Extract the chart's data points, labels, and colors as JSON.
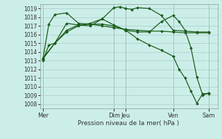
{
  "xlabel": "Pression niveau de la mer( hPa )",
  "bg_color": "#cceee8",
  "grid_color": "#aacccc",
  "line_color": "#1a5c1a",
  "ylim": [
    1007.5,
    1019.5
  ],
  "yticks": [
    1008,
    1009,
    1010,
    1011,
    1012,
    1013,
    1014,
    1015,
    1016,
    1017,
    1018,
    1019
  ],
  "xtick_labels": [
    "Mer",
    "Dim",
    "Jeu",
    "Ven",
    "Sam"
  ],
  "xtick_pos": [
    0,
    12,
    14,
    22,
    28
  ],
  "xlim": [
    -0.5,
    29.5
  ],
  "vline_color": "#889999",
  "series": [
    {
      "x": [
        0,
        1,
        2,
        4,
        6,
        8,
        10,
        12,
        13,
        14,
        15,
        16,
        18,
        20,
        22,
        24,
        26,
        28
      ],
      "y": [
        1013.0,
        1014.8,
        1015.0,
        1017.3,
        1017.1,
        1017.0,
        1017.8,
        1019.1,
        1019.2,
        1019.0,
        1018.9,
        1019.1,
        1019.0,
        1018.2,
        1016.5,
        1016.4,
        1016.3,
        1016.3
      ]
    },
    {
      "x": [
        0,
        1,
        2,
        4,
        6,
        8,
        10,
        12,
        14,
        16,
        18,
        20,
        22,
        24,
        26,
        28
      ],
      "y": [
        1013.2,
        1017.2,
        1018.3,
        1018.5,
        1017.3,
        1017.2,
        1017.0,
        1016.8,
        1016.6,
        1016.5,
        1016.4,
        1016.4,
        1016.3,
        1016.2,
        1016.2,
        1016.2
      ]
    },
    {
      "x": [
        0,
        2,
        4,
        6,
        8,
        10,
        12,
        14,
        16,
        18,
        20,
        22,
        23,
        24,
        25,
        26,
        27,
        28
      ],
      "y": [
        1013.2,
        1015.0,
        1016.5,
        1017.1,
        1017.2,
        1017.2,
        1017.0,
        1016.5,
        1016.3,
        1016.3,
        1017.5,
        1018.2,
        1017.5,
        1016.5,
        1014.5,
        1011.1,
        1009.0,
        1009.3
      ]
    },
    {
      "x": [
        0,
        2,
        4,
        6,
        8,
        10,
        12,
        14,
        16,
        18,
        20,
        22,
        23,
        24,
        25,
        26,
        27,
        28
      ],
      "y": [
        1013.3,
        1015.0,
        1016.3,
        1017.0,
        1017.3,
        1017.8,
        1017.1,
        1016.5,
        1015.5,
        1014.8,
        1014.2,
        1013.5,
        1012.0,
        1011.0,
        1009.5,
        1008.1,
        1009.2,
        1009.2
      ]
    }
  ]
}
